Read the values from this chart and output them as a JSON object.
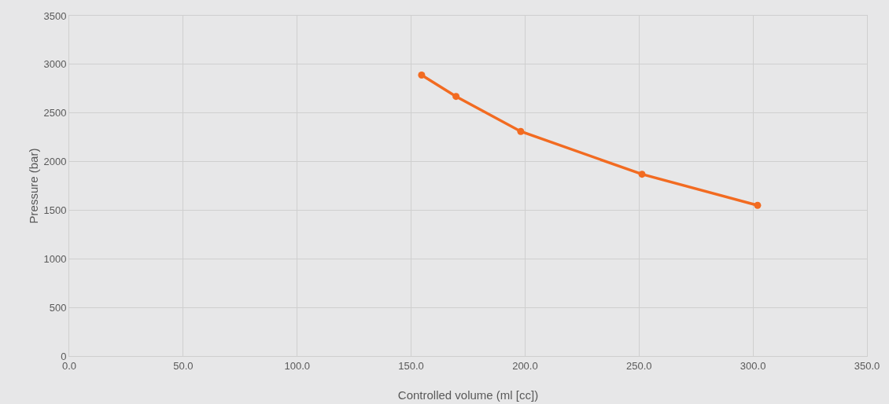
{
  "chart_data": {
    "type": "line",
    "xlabel": "Controlled volume (ml [cc])",
    "ylabel": "Pressure (bar)",
    "x": [
      154.6,
      169.7,
      198.1,
      251.3,
      302.0
    ],
    "series": [
      {
        "color": "#f26b21",
        "values": [
          2890,
          2670,
          2310,
          1870,
          1550
        ]
      }
    ],
    "xlim": [
      0,
      350
    ],
    "xticks": [
      {
        "value": 0,
        "label": "0.0"
      },
      {
        "value": 50,
        "label": "50.0"
      },
      {
        "value": 100,
        "label": "100.0"
      },
      {
        "value": 150,
        "label": "150.0"
      },
      {
        "value": 200,
        "label": "200.0"
      },
      {
        "value": 250,
        "label": "250.0"
      },
      {
        "value": 300,
        "label": "300.0"
      },
      {
        "value": 350,
        "label": "350.0"
      }
    ],
    "ylim": [
      0,
      3500
    ],
    "yticks": [
      0,
      500,
      1000,
      1500,
      2000,
      2500,
      3000,
      3500
    ],
    "grid": true,
    "marker": "circle",
    "line_style": "solid"
  }
}
